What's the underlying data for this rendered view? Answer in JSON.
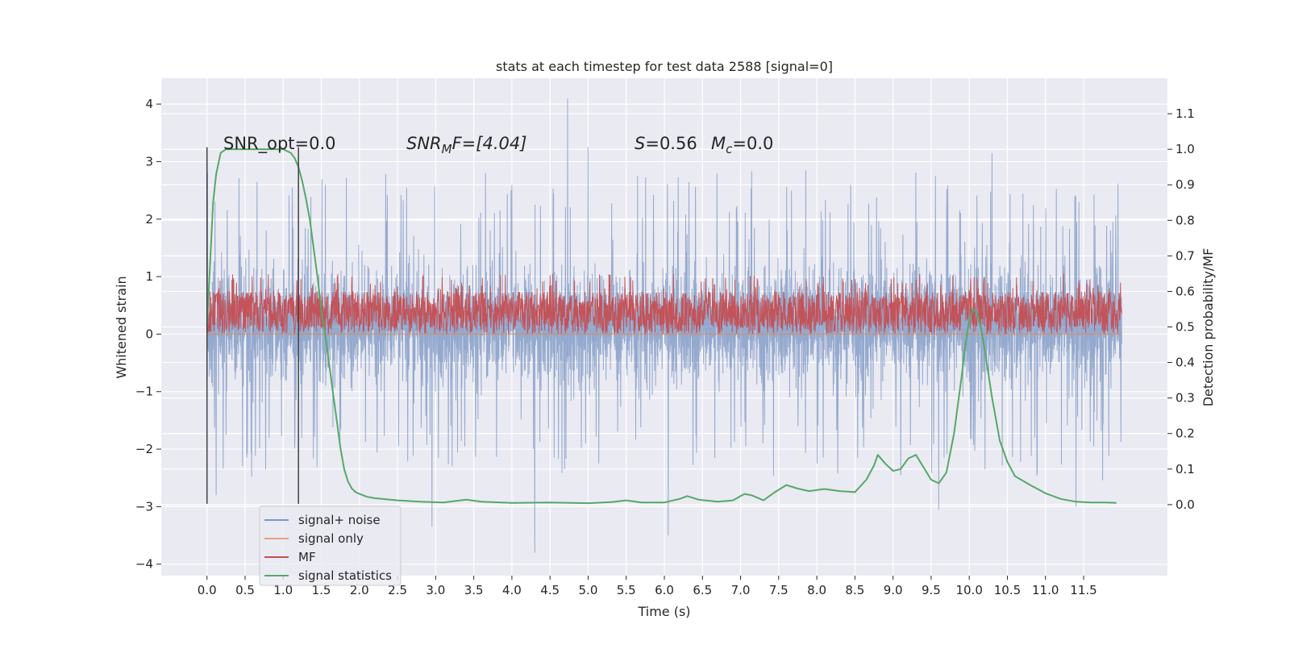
{
  "chart_data": {
    "type": "line",
    "title": "stats at each timestep for test data 2588 [signal=0]",
    "xlabel": "Time (s)",
    "ylabel": "Whitened strain",
    "y2label": "Detection probability/MF",
    "xlim": [
      -0.6,
      12.6
    ],
    "ylim": [
      -4.2,
      4.45
    ],
    "y2lim": [
      -0.2,
      1.2
    ],
    "x_ticks": [
      0.0,
      0.5,
      1.0,
      1.5,
      2.0,
      2.5,
      3.0,
      3.5,
      4.0,
      4.5,
      5.0,
      5.5,
      6.0,
      6.5,
      7.0,
      7.5,
      8.0,
      8.5,
      9.0,
      9.5,
      10.0,
      10.5,
      11.0,
      11.5
    ],
    "x_tick_labels": [
      "0.0",
      "0.5",
      "1.0",
      "1.5",
      "2.0",
      "2.5",
      "3.0",
      "3.5",
      "4.0",
      "4.5",
      "5.0",
      "5.5",
      "6.0",
      "6.5",
      "7.0",
      "7.5",
      "8.0",
      "8.5",
      "9.0",
      "9.5",
      "10.0",
      "10.5",
      "11.0",
      "11.5"
    ],
    "y_ticks": [
      4,
      3,
      2,
      1,
      0,
      -1,
      -2,
      -3,
      -4
    ],
    "y_tick_labels": [
      "4",
      "3",
      "2",
      "1",
      "0",
      "−1",
      "−2",
      "−3",
      "−4"
    ],
    "y2_ticks": [
      1.1,
      1.0,
      0.9,
      0.8,
      0.7,
      0.6,
      0.5,
      0.4,
      0.3,
      0.2,
      0.1,
      0.0
    ],
    "y2_tick_labels": [
      "1.1",
      "1.0",
      "0.9",
      "0.8",
      "0.7",
      "0.6",
      "0.5",
      "0.4",
      "0.3",
      "0.2",
      "0.1",
      "0.0"
    ],
    "grid": true,
    "legend_position": "lower-left",
    "annotations": {
      "snr_opt": "SNR_opt=0.0",
      "snr_mf_base": "SNR",
      "snr_mf_sub": "M",
      "snr_mf_rest": "F=[4.04]",
      "s_var": "S",
      "s_rest": "=0.56",
      "mc_var": "M",
      "mc_sub": "c",
      "mc_rest": "=0.0"
    },
    "vertical_markers": [
      {
        "x": 0.0,
        "y_range": [
          -2.95,
          3.25
        ]
      },
      {
        "x": 1.2,
        "y_range": [
          -2.95,
          3.25
        ]
      }
    ],
    "series": [
      {
        "name": "signal+ noise",
        "color": "#4c72b0",
        "axis": "left",
        "kind": "noise-band",
        "x_range": [
          0.0,
          12.0
        ],
        "core_range": [
          -1.1,
          1.4
        ],
        "spike_range": [
          -3.8,
          4.1
        ],
        "notable_peaks": [
          {
            "x": 4.73,
            "y": 4.1
          },
          {
            "x": 2.95,
            "y": 3.35
          },
          {
            "x": 5.0,
            "y": 3.25
          },
          {
            "x": 10.3,
            "y": 3.15
          },
          {
            "x": 4.3,
            "y": -3.8
          },
          {
            "x": 2.95,
            "y": -3.35
          },
          {
            "x": 6.05,
            "y": -3.5
          },
          {
            "x": 0.12,
            "y": -2.8
          },
          {
            "x": 9.6,
            "y": -3.05
          },
          {
            "x": 11.4,
            "y": -3.0
          }
        ]
      },
      {
        "name": "signal only",
        "color": "#dd8452",
        "axis": "left",
        "kind": "flat",
        "x": [
          0.0,
          12.0
        ],
        "y": [
          0.0,
          0.0
        ]
      },
      {
        "name": "MF",
        "color": "#c44e52",
        "axis": "right",
        "kind": "noise-band",
        "x_range": [
          0.0,
          12.0
        ],
        "core_range": [
          0.48,
          0.6
        ],
        "spike_range": [
          0.48,
          0.65
        ]
      },
      {
        "name": "signal statistics",
        "color": "#55a868",
        "axis": "right",
        "kind": "line",
        "x": [
          0.0,
          0.05,
          0.08,
          0.12,
          0.18,
          0.25,
          0.35,
          0.5,
          0.7,
          0.9,
          1.0,
          1.05,
          1.1,
          1.15,
          1.2,
          1.25,
          1.3,
          1.35,
          1.4,
          1.45,
          1.5,
          1.55,
          1.6,
          1.65,
          1.7,
          1.75,
          1.8,
          1.85,
          1.9,
          1.95,
          2.0,
          2.1,
          2.2,
          2.5,
          2.8,
          3.1,
          3.25,
          3.4,
          3.6,
          4.0,
          4.5,
          5.0,
          5.3,
          5.5,
          5.7,
          6.0,
          6.2,
          6.3,
          6.45,
          6.7,
          6.9,
          7.05,
          7.15,
          7.3,
          7.45,
          7.6,
          7.75,
          7.9,
          8.1,
          8.3,
          8.5,
          8.65,
          8.75,
          8.8,
          8.9,
          9.0,
          9.1,
          9.2,
          9.3,
          9.4,
          9.5,
          9.6,
          9.7,
          9.8,
          9.9,
          9.95,
          10.0,
          10.05,
          10.1,
          10.15,
          10.2,
          10.25,
          10.3,
          10.35,
          10.4,
          10.5,
          10.6,
          10.8,
          11.0,
          11.2,
          11.4,
          11.6,
          11.8,
          11.93
        ],
        "y": [
          0.5,
          0.72,
          0.85,
          0.93,
          0.99,
          1.0,
          1.0,
          1.0,
          1.0,
          1.0,
          1.0,
          0.995,
          0.99,
          0.975,
          0.95,
          0.91,
          0.86,
          0.8,
          0.72,
          0.64,
          0.55,
          0.48,
          0.4,
          0.32,
          0.24,
          0.16,
          0.1,
          0.065,
          0.045,
          0.035,
          0.03,
          0.022,
          0.018,
          0.012,
          0.008,
          0.006,
          0.01,
          0.014,
          0.008,
          0.005,
          0.006,
          0.004,
          0.007,
          0.012,
          0.006,
          0.006,
          0.016,
          0.024,
          0.014,
          0.008,
          0.012,
          0.03,
          0.026,
          0.012,
          0.035,
          0.055,
          0.045,
          0.038,
          0.044,
          0.038,
          0.035,
          0.07,
          0.11,
          0.14,
          0.115,
          0.095,
          0.1,
          0.13,
          0.14,
          0.105,
          0.07,
          0.06,
          0.09,
          0.2,
          0.36,
          0.45,
          0.52,
          0.55,
          0.54,
          0.5,
          0.44,
          0.37,
          0.3,
          0.24,
          0.18,
          0.12,
          0.08,
          0.055,
          0.032,
          0.016,
          0.008,
          0.006,
          0.006,
          0.005
        ]
      }
    ]
  },
  "colors": {
    "plot_background": "#eaeaf2",
    "grid": "#ffffff",
    "text": "#262626",
    "marker_line": "#404040"
  }
}
